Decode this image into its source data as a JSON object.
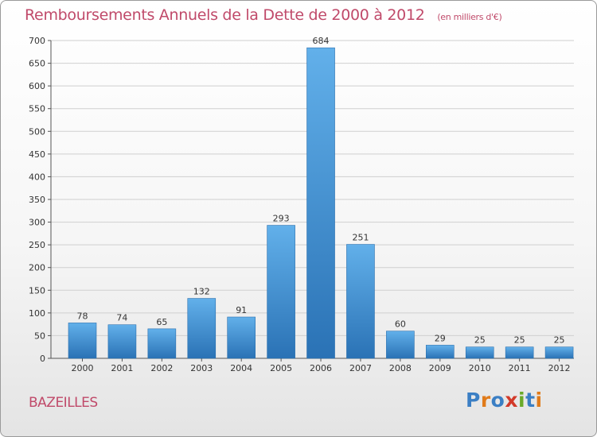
{
  "header": {
    "title": "Remboursements Annuels de la Dette de 2000 à 2012",
    "unit": "(en milliers d'€)"
  },
  "commune": "BAZEILLES",
  "logo": {
    "text": "Proxiti",
    "letter_colors": [
      "#3b7fc4",
      "#e07b1a",
      "#3b7fc4",
      "#d23a2a",
      "#6aaa2a",
      "#3b7fc4",
      "#e07b1a"
    ]
  },
  "colors": {
    "bar": "#3a8fd6",
    "bar_light": "#62b0ea",
    "bar_dark": "#2a72b5",
    "title": "#c04a6a",
    "grid": "#cfcfcf"
  },
  "chart_data": {
    "type": "bar",
    "title": "Remboursements Annuels de la Dette de 2000 à 2012",
    "subtitle": "(en milliers d'€)",
    "categories": [
      "2000",
      "2001",
      "2002",
      "2003",
      "2004",
      "2005",
      "2006",
      "2007",
      "2008",
      "2009",
      "2010",
      "2011",
      "2012"
    ],
    "values": [
      78,
      74,
      65,
      132,
      91,
      293,
      684,
      251,
      60,
      29,
      25,
      25,
      25
    ],
    "ylim": [
      0,
      700
    ],
    "yticks": [
      0,
      50,
      100,
      150,
      200,
      250,
      300,
      350,
      400,
      450,
      500,
      550,
      600,
      650,
      700
    ],
    "xlabel": "",
    "ylabel": "",
    "grid": true,
    "legend": "none"
  }
}
